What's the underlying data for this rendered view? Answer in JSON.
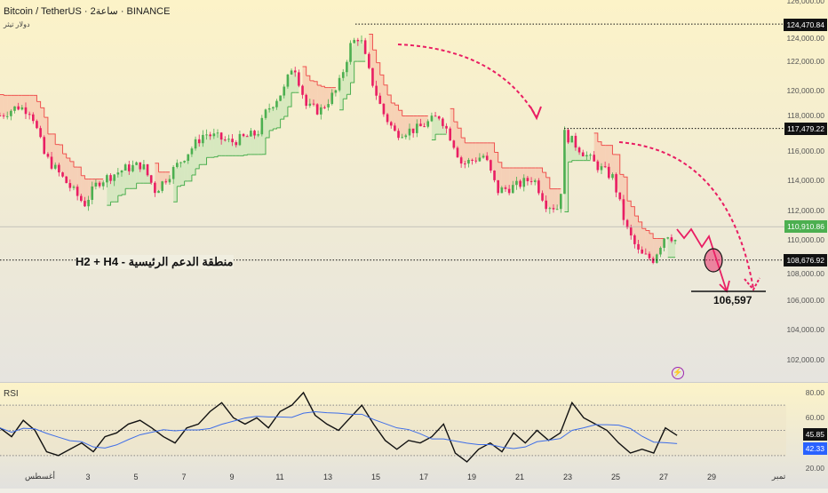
{
  "header": {
    "title": "Bitcoin / TetherUS · 2ساعة · BINANCE",
    "subtitle": "دولار تيثر"
  },
  "price_axis": [
    "126,000.00",
    "124,000.00",
    "122,000.00",
    "120,000.00",
    "118,000.00",
    "116,000.00",
    "114,000.00",
    "112,000.00",
    "110,000.00",
    "108,000.00",
    "106,000.00",
    "104,000.00",
    "102,000.00"
  ],
  "price_tags": {
    "high": "124,470.84",
    "mid": "117,479.22",
    "last": "110,910.86",
    "support": "108,676.92"
  },
  "annotations": {
    "support_label": "منطقة الدعم الرئيسية - H2 + H4",
    "target": "106,597"
  },
  "rsi": {
    "label": "RSI",
    "axis": [
      "80.00",
      "60.00",
      "20.00"
    ],
    "value": "45.85",
    "ma_value": "42.33"
  },
  "time_axis": [
    {
      "label": "أغسطس",
      "day": 1
    },
    {
      "label": "3",
      "day": 3
    },
    {
      "label": "5",
      "day": 5
    },
    {
      "label": "7",
      "day": 7
    },
    {
      "label": "9",
      "day": 9
    },
    {
      "label": "11",
      "day": 11
    },
    {
      "label": "13",
      "day": 13
    },
    {
      "label": "15",
      "day": 15
    },
    {
      "label": "17",
      "day": 17
    },
    {
      "label": "19",
      "day": 19
    },
    {
      "label": "21",
      "day": 21
    },
    {
      "label": "23",
      "day": 23
    },
    {
      "label": "25",
      "day": 25
    },
    {
      "label": "27",
      "day": 27
    },
    {
      "label": "29",
      "day": 29
    },
    {
      "label": "تمبر",
      "day": 31.8
    }
  ],
  "colors": {
    "up": "#4caf50",
    "down": "#e91e63",
    "band": "#f7b9a0",
    "accent": "#e91e63"
  },
  "chart_data": {
    "type": "candlestick",
    "price_path": [
      [
        -0.67,
        118350
      ],
      [
        0.07,
        118950
      ],
      [
        0.63,
        118650
      ],
      [
        1.19,
        115680
      ],
      [
        1.93,
        114190
      ],
      [
        2.85,
        112410
      ],
      [
        3.41,
        113890
      ],
      [
        4.52,
        114780
      ],
      [
        5.26,
        115080
      ],
      [
        5.81,
        113300
      ],
      [
        6.74,
        115080
      ],
      [
        7.85,
        117160
      ],
      [
        8.96,
        116570
      ],
      [
        10.07,
        117160
      ],
      [
        10.44,
        118650
      ],
      [
        11.19,
        120140
      ],
      [
        11.56,
        121920
      ],
      [
        12.11,
        118950
      ],
      [
        12.67,
        118650
      ],
      [
        13.41,
        120140
      ],
      [
        13.96,
        123110
      ],
      [
        14.33,
        123700
      ],
      [
        14.7,
        121320
      ],
      [
        15.26,
        118650
      ],
      [
        15.81,
        117160
      ],
      [
        16.74,
        117460
      ],
      [
        17.67,
        118350
      ],
      [
        18.22,
        116570
      ],
      [
        18.59,
        115080
      ],
      [
        19.52,
        115680
      ],
      [
        20.07,
        113300
      ],
      [
        20.81,
        113600
      ],
      [
        21.56,
        114190
      ],
      [
        22.11,
        112410
      ],
      [
        22.67,
        112110
      ],
      [
        22.85,
        117160
      ],
      [
        23.41,
        116270
      ],
      [
        24.15,
        115080
      ],
      [
        24.89,
        114190
      ],
      [
        25.44,
        110810
      ],
      [
        26,
        109030
      ],
      [
        26.56,
        108730
      ],
      [
        27.11,
        110510
      ],
      [
        27.56,
        109920
      ]
    ],
    "rsi_values": [
      52,
      45,
      58,
      50,
      33,
      30,
      35,
      40,
      33,
      45,
      48,
      55,
      58,
      52,
      45,
      40,
      52,
      55,
      65,
      72,
      60,
      55,
      60,
      52,
      65,
      70,
      80,
      62,
      55,
      50,
      60,
      70,
      55,
      42,
      35,
      42,
      40,
      45,
      55,
      32,
      25,
      35,
      40,
      33,
      48,
      40,
      50,
      42,
      48,
      72,
      60,
      55,
      50,
      40,
      32,
      35,
      32,
      52,
      46
    ],
    "ylim": [
      101000,
      126500
    ],
    "rsi_lim": [
      18,
      84
    ]
  }
}
